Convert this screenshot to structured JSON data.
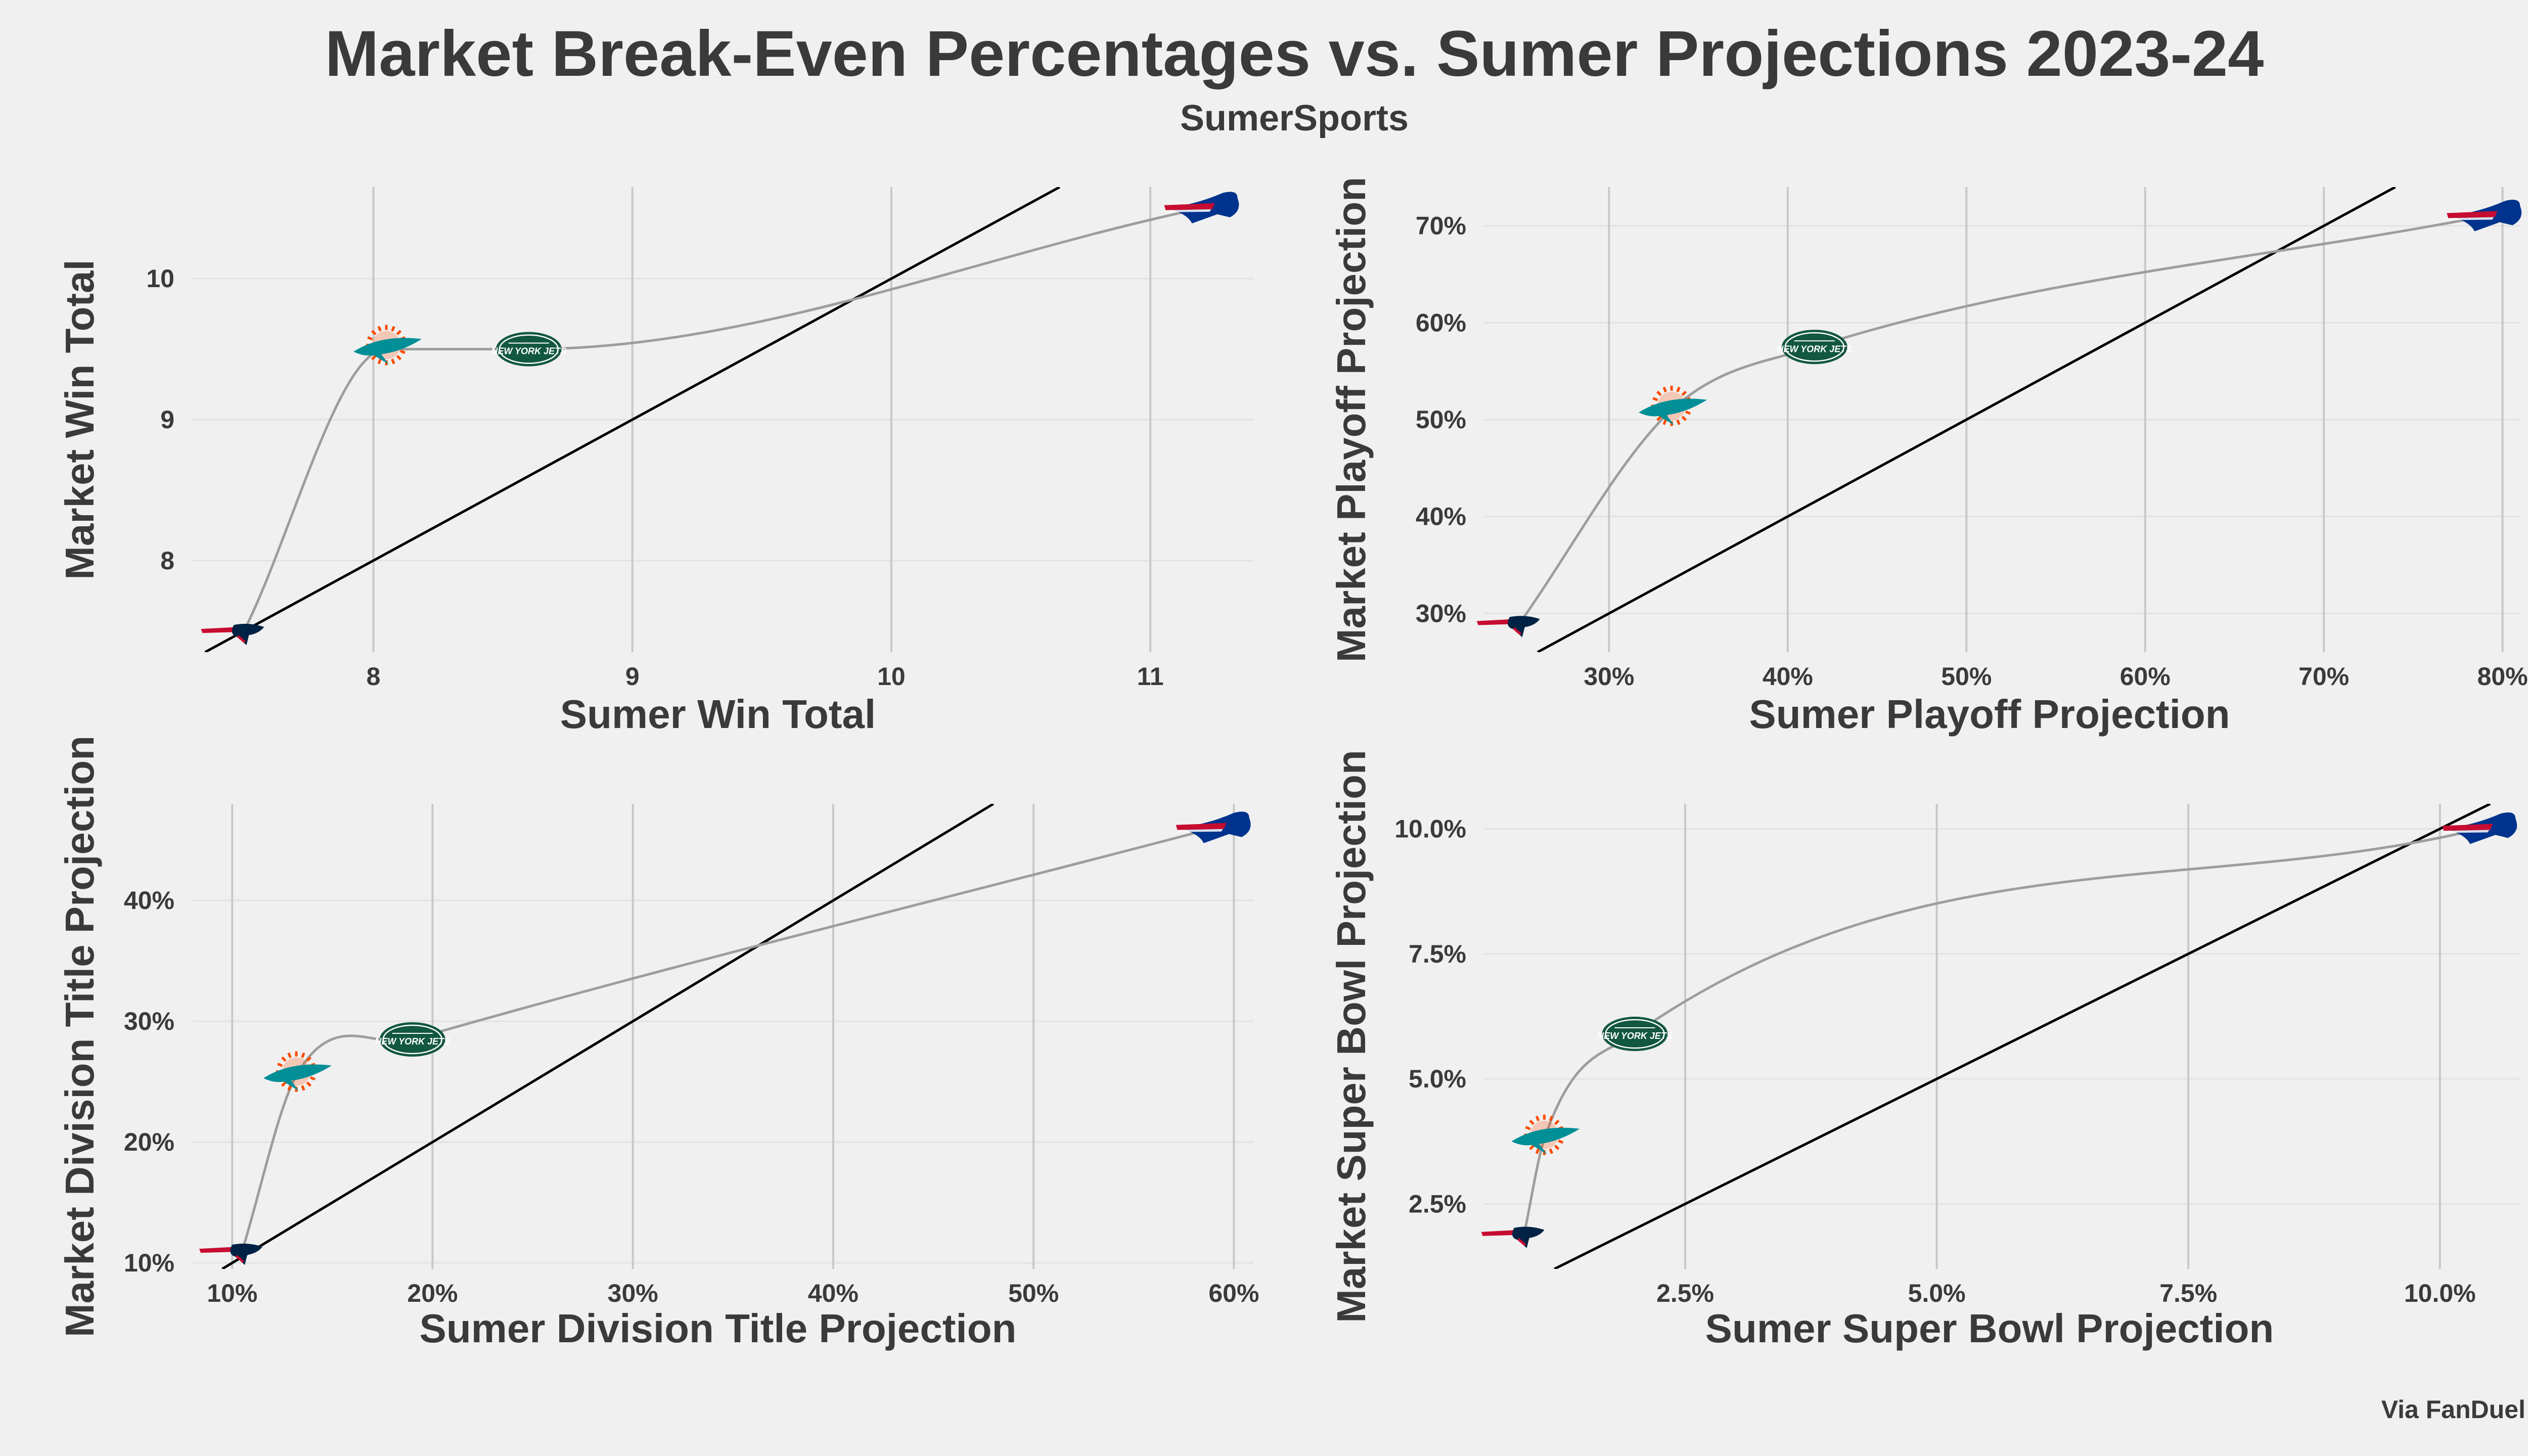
{
  "header": {
    "title": "Market Break-Even Percentages vs. Sumer Projections 2023-24",
    "subtitle": "SumerSports"
  },
  "footer": {
    "source": "Via FanDuel"
  },
  "colors": {
    "background": "#f0f0f0",
    "text": "#3a3a3a",
    "curve": "#9d9d9d",
    "reference_line": "#000000",
    "bills_blue": "#00338d",
    "bills_red": "#c60c30",
    "dolphins_aqua": "#008e97",
    "dolphins_orange": "#fc4c02",
    "jets_green": "#125740",
    "patriots_navy": "#002244",
    "patriots_red": "#c60c30"
  },
  "teams": [
    {
      "key": "bills",
      "icon": "bills-logo-icon"
    },
    {
      "key": "dolphins",
      "icon": "dolphins-logo-icon"
    },
    {
      "key": "jets",
      "icon": "jets-logo-icon",
      "text": "NEW YORK JETS"
    },
    {
      "key": "patriots",
      "icon": "patriots-logo-icon"
    }
  ],
  "chart_data": [
    {
      "type": "scatter",
      "xlabel": "Sumer Win Total",
      "ylabel": "Market Win Total",
      "xlim": [
        7.3,
        11.4
      ],
      "ylim": [
        7.35,
        10.65
      ],
      "xticks": [
        8,
        9,
        10,
        11
      ],
      "yticks": [
        8,
        9,
        10
      ],
      "tick_format": "int",
      "points": [
        {
          "team": "patriots",
          "x": 7.5,
          "y": 7.5
        },
        {
          "team": "dolphins",
          "x": 8.05,
          "y": 9.5
        },
        {
          "team": "jets",
          "x": 8.6,
          "y": 9.5
        },
        {
          "team": "bills",
          "x": 11.2,
          "y": 10.5
        }
      ],
      "reference_line": "y = x",
      "grid": "on"
    },
    {
      "type": "scatter",
      "xlabel": "Sumer Playoff Projection",
      "ylabel": "Market Playoff Projection",
      "xlim": [
        23,
        81
      ],
      "ylim": [
        26,
        74
      ],
      "xticks": [
        30,
        40,
        50,
        60,
        70,
        80
      ],
      "yticks": [
        30,
        40,
        50,
        60,
        70
      ],
      "tick_format": "percent0",
      "points": [
        {
          "team": "patriots",
          "x": 25,
          "y": 29
        },
        {
          "team": "dolphins",
          "x": 33.5,
          "y": 51
        },
        {
          "team": "jets",
          "x": 41.5,
          "y": 57.5
        },
        {
          "team": "bills",
          "x": 79,
          "y": 71
        }
      ],
      "reference_line": "y = x",
      "grid": "on"
    },
    {
      "type": "scatter",
      "xlabel": "Sumer Division Title Projection",
      "ylabel": "Market Division Title Projection",
      "xlim": [
        8,
        61
      ],
      "ylim": [
        9.5,
        48
      ],
      "xticks": [
        10,
        20,
        30,
        40,
        50,
        60
      ],
      "yticks": [
        10,
        20,
        30,
        40
      ],
      "tick_format": "percent0",
      "points": [
        {
          "team": "patriots",
          "x": 10.5,
          "y": 11
        },
        {
          "team": "dolphins",
          "x": 13.2,
          "y": 25.5
        },
        {
          "team": "jets",
          "x": 19,
          "y": 28.5
        },
        {
          "team": "bills",
          "x": 59,
          "y": 46
        }
      ],
      "reference_line": "y = x",
      "grid": "on"
    },
    {
      "type": "scatter",
      "xlabel": "Sumer Super Bowl Projection",
      "ylabel": "Market Super Bowl Projection",
      "xlim": [
        0.5,
        10.8
      ],
      "ylim": [
        1.2,
        10.5
      ],
      "xticks": [
        2.5,
        5.0,
        7.5,
        10.0
      ],
      "yticks": [
        2.5,
        5.0,
        7.5,
        10.0
      ],
      "tick_format": "percent1",
      "points": [
        {
          "team": "patriots",
          "x": 0.9,
          "y": 1.9
        },
        {
          "team": "dolphins",
          "x": 1.1,
          "y": 3.8
        },
        {
          "team": "jets",
          "x": 2.0,
          "y": 5.9
        },
        {
          "team": "bills",
          "x": 10.4,
          "y": 10.0
        }
      ],
      "reference_line": "y = x",
      "grid": "on"
    }
  ]
}
